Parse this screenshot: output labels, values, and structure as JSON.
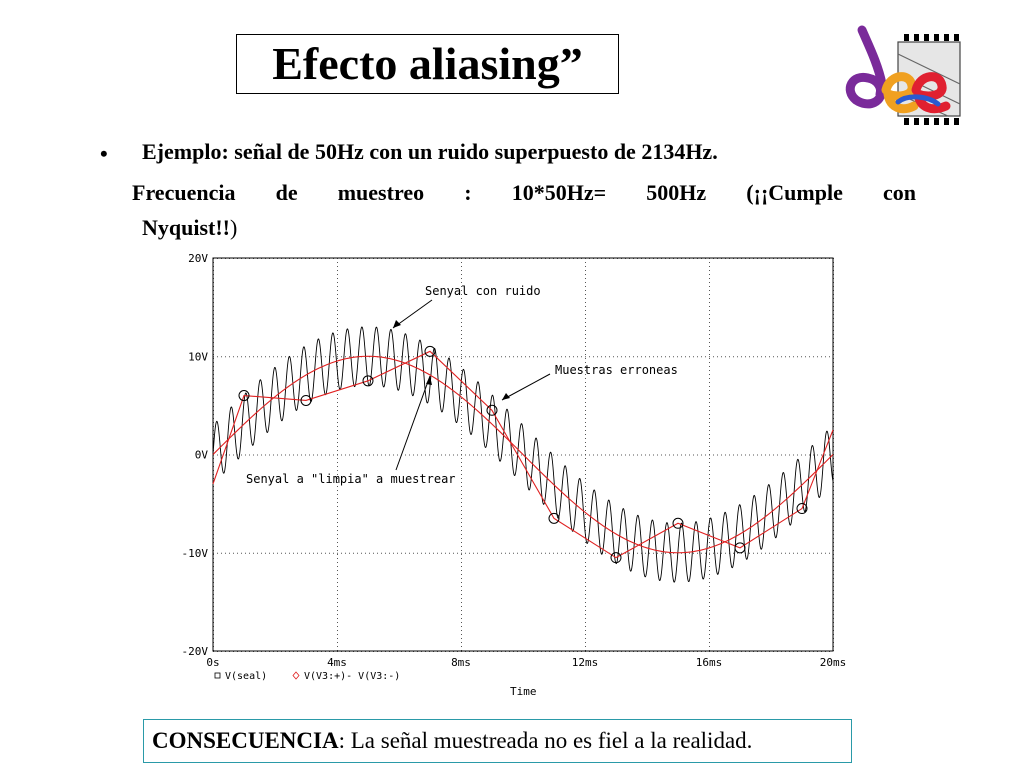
{
  "slide": {
    "title": "Efecto aliasing”",
    "bullet_marker": "•",
    "bullet_text": "Ejemplo: señal de 50Hz con un ruido superpuesto de 2134Hz.",
    "line2_parts": [
      "Frecuencia",
      "de",
      "muestreo",
      ":",
      "10*50Hz=",
      "500Hz",
      "(¡¡Cumple",
      "con"
    ],
    "line3_bold": "Nyquist!!",
    "line3_close": ")",
    "conclusion_keyword": "CONSECUENCIA",
    "conclusion_text": ": La señal muestreada no es fiel a la realidad."
  },
  "chart_data": {
    "type": "line",
    "x_unit": "ms",
    "xlim": [
      0,
      20
    ],
    "ylim": [
      -20,
      20
    ],
    "x_ticks": [
      0,
      4,
      8,
      12,
      16,
      20
    ],
    "x_tick_labels": [
      "0s",
      "4ms",
      "8ms",
      "12ms",
      "16ms",
      "20ms"
    ],
    "y_ticks": [
      20,
      10,
      0,
      -10,
      -20
    ],
    "y_tick_labels": [
      "20V",
      "10V",
      "0V",
      "-10V",
      "-20V"
    ],
    "xlabel": "Time",
    "grid": true,
    "legend_position": "bottom-left",
    "legend": [
      {
        "marker": "square",
        "label": "V(seal)"
      },
      {
        "marker": "diamond",
        "label": "V(V3:+)-  V(V3:-)"
      }
    ],
    "series": [
      {
        "name": "V(seal)",
        "description": "sine 50Hz, 10V amplitude + noise 2134Hz, 3V",
        "color": "#000000",
        "amplitude": 10,
        "freq_hz": 50,
        "noise_amplitude": 3,
        "noise_freq_hz": 2134
      },
      {
        "name": "V(V3:+)-  V(V3:-)",
        "color": "#e02020",
        "amplitude": 10,
        "freq_hz": 50
      },
      {
        "name": "muestras",
        "color": "#e02020",
        "x": [
          0,
          1,
          3,
          5,
          7,
          9,
          11,
          13,
          15,
          17,
          19,
          20
        ],
        "y": [
          -3,
          6,
          5.5,
          7.5,
          10.5,
          4.5,
          -6.5,
          -10.5,
          -7,
          -9.5,
          -5.5,
          2.5
        ]
      }
    ],
    "sample_points": {
      "x": [
        1,
        3,
        5,
        7,
        9,
        11,
        13,
        15,
        17,
        19
      ],
      "y": [
        6,
        5.5,
        7.5,
        10.5,
        4.5,
        -6.5,
        -10.5,
        -7,
        -9.5,
        -5.5
      ]
    },
    "annotations": [
      {
        "text": "Senyal con ruido"
      },
      {
        "text": "Muestras erroneas"
      },
      {
        "text": "Senyal a \"limpia\" a muestrear"
      }
    ]
  }
}
